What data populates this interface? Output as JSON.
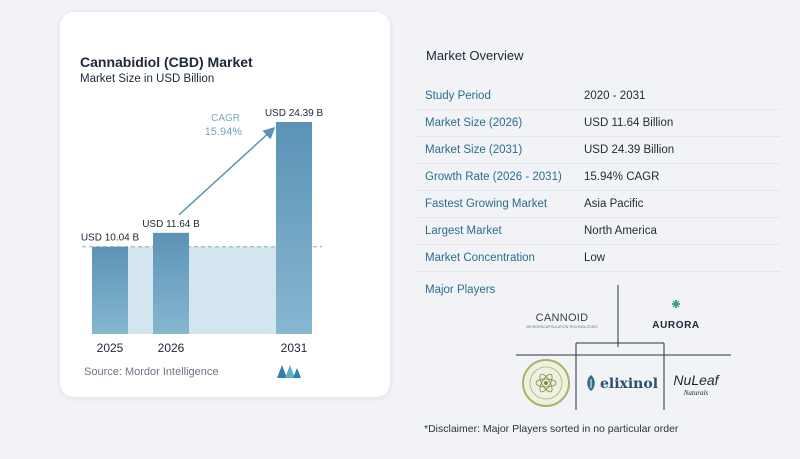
{
  "chart_card": {
    "title": "Cannabidiol (CBD) Market",
    "subtitle": "Market Size in USD Billion",
    "source": "Source:  Mordor Intelligence"
  },
  "chart_data": {
    "type": "bar",
    "title": "Cannabidiol (CBD) Market",
    "subtitle": "Market Size in USD Billion",
    "categories": [
      "2025",
      "2026",
      "2031"
    ],
    "values": [
      10.04,
      11.64,
      24.39
    ],
    "data_labels": [
      "USD 10.04 B",
      "USD 11.64 B",
      "USD 24.39 B"
    ],
    "cagr_label": "CAGR",
    "cagr_value": "15.94%",
    "ylim": [
      0,
      25
    ],
    "grid": false,
    "colors": {
      "bar": "#6fa3c1",
      "bar_top": "#5b93b5",
      "band": "#d3e5ef",
      "arrow": "#5b93b5",
      "cagr": "#6fa3c1"
    }
  },
  "overview": {
    "title": "Market Overview",
    "rows": [
      {
        "key": "Study Period",
        "value": "2020 - 2031"
      },
      {
        "key": "Market Size (2026)",
        "value": "USD 11.64 Billion"
      },
      {
        "key": "Market Size (2031)",
        "value": "USD 24.39 Billion"
      },
      {
        "key": "Growth Rate (2026 - 2031)",
        "value": "15.94% CAGR"
      },
      {
        "key": "Fastest Growing Market",
        "value": "Asia Pacific"
      },
      {
        "key": "Largest Market",
        "value": "North America"
      },
      {
        "key": "Market Concentration",
        "value": "Low"
      }
    ],
    "players_title": "Major Players",
    "players": [
      {
        "name": "CANNOID",
        "tagline": "MICROENCAPSULATION TECHNOLOGIES"
      },
      {
        "name": "AURORA"
      },
      {
        "name": "elixinol"
      },
      {
        "name": "NuLeaf",
        "tagline": "Naturals"
      },
      {
        "name": "Medical Marijuana Inc",
        "tagline": ""
      }
    ],
    "disclaimer": "*Disclaimer: Major Players sorted in no particular order"
  }
}
